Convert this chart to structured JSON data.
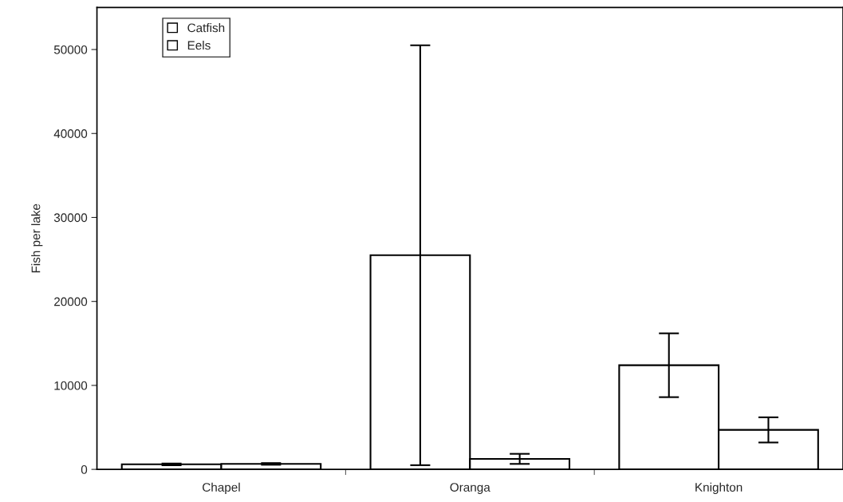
{
  "chart_data": {
    "type": "bar",
    "ylabel": "Fish per lake",
    "categories": [
      "Chapel",
      "Oranga",
      "Knighton"
    ],
    "series": [
      {
        "name": "Catfish",
        "color": "#ffffff",
        "values": [
          600,
          25500,
          12400
        ],
        "errors": [
          100,
          25000,
          3800
        ]
      },
      {
        "name": "Eels",
        "color": "#ffffff",
        "values": [
          650,
          1250,
          4700
        ],
        "errors": [
          100,
          600,
          1500
        ]
      }
    ],
    "ylim": [
      0,
      55000
    ],
    "yticks": [
      0,
      10000,
      20000,
      30000,
      40000,
      50000
    ],
    "grid": false,
    "legend": "top left"
  }
}
